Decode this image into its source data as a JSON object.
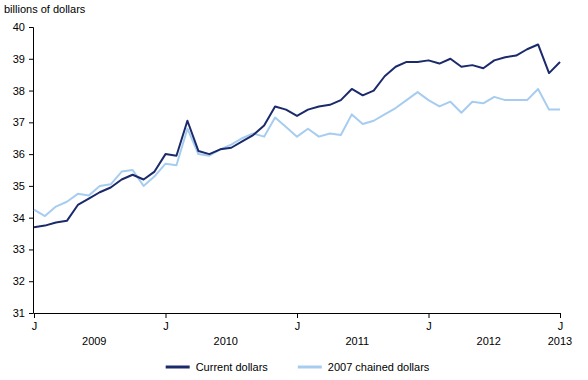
{
  "chart_data": {
    "type": "line",
    "y_axis_title": "billions of dollars",
    "categories": [
      "J",
      null,
      null,
      null,
      null,
      null,
      null,
      null,
      null,
      null,
      null,
      null,
      "J",
      null,
      null,
      null,
      null,
      null,
      null,
      null,
      null,
      null,
      null,
      null,
      "J",
      null,
      null,
      null,
      null,
      null,
      null,
      null,
      null,
      null,
      null,
      null,
      "J",
      null,
      null,
      null,
      null,
      null,
      null,
      null,
      null,
      null,
      null,
      null,
      "J"
    ],
    "category_groups": [
      {
        "label": "2009",
        "from": 0,
        "to": 11
      },
      {
        "label": "2010",
        "from": 12,
        "to": 23
      },
      {
        "label": "2011",
        "from": 24,
        "to": 35
      },
      {
        "label": "2012",
        "from": 36,
        "to": 47
      },
      {
        "label": "2013",
        "from": 48,
        "to": 48
      }
    ],
    "series": [
      {
        "name": "Current dollars",
        "color": "#1b2a6b",
        "values": [
          33.7,
          33.75,
          33.85,
          33.9,
          34.4,
          34.6,
          34.8,
          34.95,
          35.2,
          35.35,
          35.2,
          35.45,
          36.0,
          35.95,
          37.05,
          36.1,
          36.0,
          36.15,
          36.2,
          36.4,
          36.6,
          36.9,
          37.5,
          37.4,
          37.2,
          37.4,
          37.5,
          37.55,
          37.7,
          38.05,
          37.85,
          38.0,
          38.45,
          38.75,
          38.9,
          38.9,
          38.95,
          38.85,
          39.0,
          38.75,
          38.8,
          38.7,
          38.95,
          39.05,
          39.1,
          39.3,
          39.45,
          38.55,
          38.9
        ]
      },
      {
        "name": "2007 chained dollars",
        "color": "#a6cdf0",
        "values": [
          34.25,
          34.05,
          34.35,
          34.5,
          34.75,
          34.7,
          35.0,
          35.05,
          35.45,
          35.5,
          35.0,
          35.3,
          35.7,
          35.65,
          36.8,
          36.0,
          35.95,
          36.15,
          36.3,
          36.5,
          36.65,
          36.55,
          37.15,
          36.85,
          36.55,
          36.8,
          36.55,
          36.65,
          36.6,
          37.25,
          36.95,
          37.05,
          37.25,
          37.45,
          37.7,
          37.95,
          37.7,
          37.5,
          37.65,
          37.3,
          37.65,
          37.6,
          37.8,
          37.7,
          37.7,
          37.7,
          38.05,
          37.4,
          37.4
        ]
      }
    ],
    "ylim": [
      31,
      40
    ],
    "yticks": [
      31,
      32,
      33,
      34,
      35,
      36,
      37,
      38,
      39,
      40
    ],
    "grid": false,
    "legend": "bottom"
  }
}
